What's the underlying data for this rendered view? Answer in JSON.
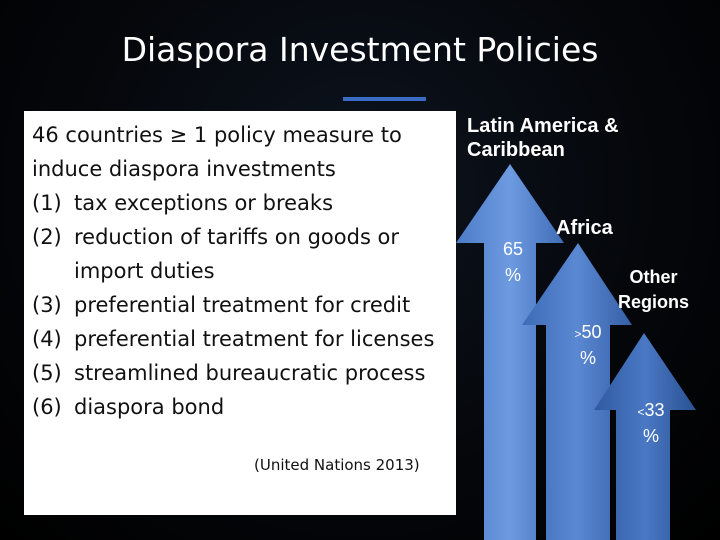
{
  "slide": {
    "title": "Diaspora Investment Policies"
  },
  "text_panel": {
    "intro_line1": "46 countries ≥ 1 policy measure to",
    "intro_line2": "induce diaspora investments",
    "items": [
      {
        "num": "(1)",
        "text": "tax exceptions or breaks"
      },
      {
        "num": "(2)",
        "text": "reduction of tariffs on goods or",
        "text2": "import duties"
      },
      {
        "num": "(3)",
        "text": "preferential treatment for credit"
      },
      {
        "num": "(4)",
        "text": "preferential treatment for licenses"
      },
      {
        "num": "(5)",
        "text": "streamlined bureaucratic process"
      },
      {
        "num": "(6)",
        "text": "diaspora bond"
      }
    ],
    "citation": "(United Nations 2013)"
  },
  "regions": [
    {
      "name_line1": "Latin America &",
      "name_line2": "Caribbean",
      "pct_sign": "",
      "pct_value": "65",
      "pct_unit": "%",
      "color": "#5b8bd6"
    },
    {
      "name_line1": "Africa",
      "pct_sign": ">",
      "pct_value": "50",
      "pct_unit": "%",
      "color": "#4a76c0"
    },
    {
      "name_line1": "Other",
      "name_line2": "Regions",
      "pct_sign": "<",
      "pct_value": "33",
      "pct_unit": "%",
      "color": "#3a65ae"
    }
  ]
}
